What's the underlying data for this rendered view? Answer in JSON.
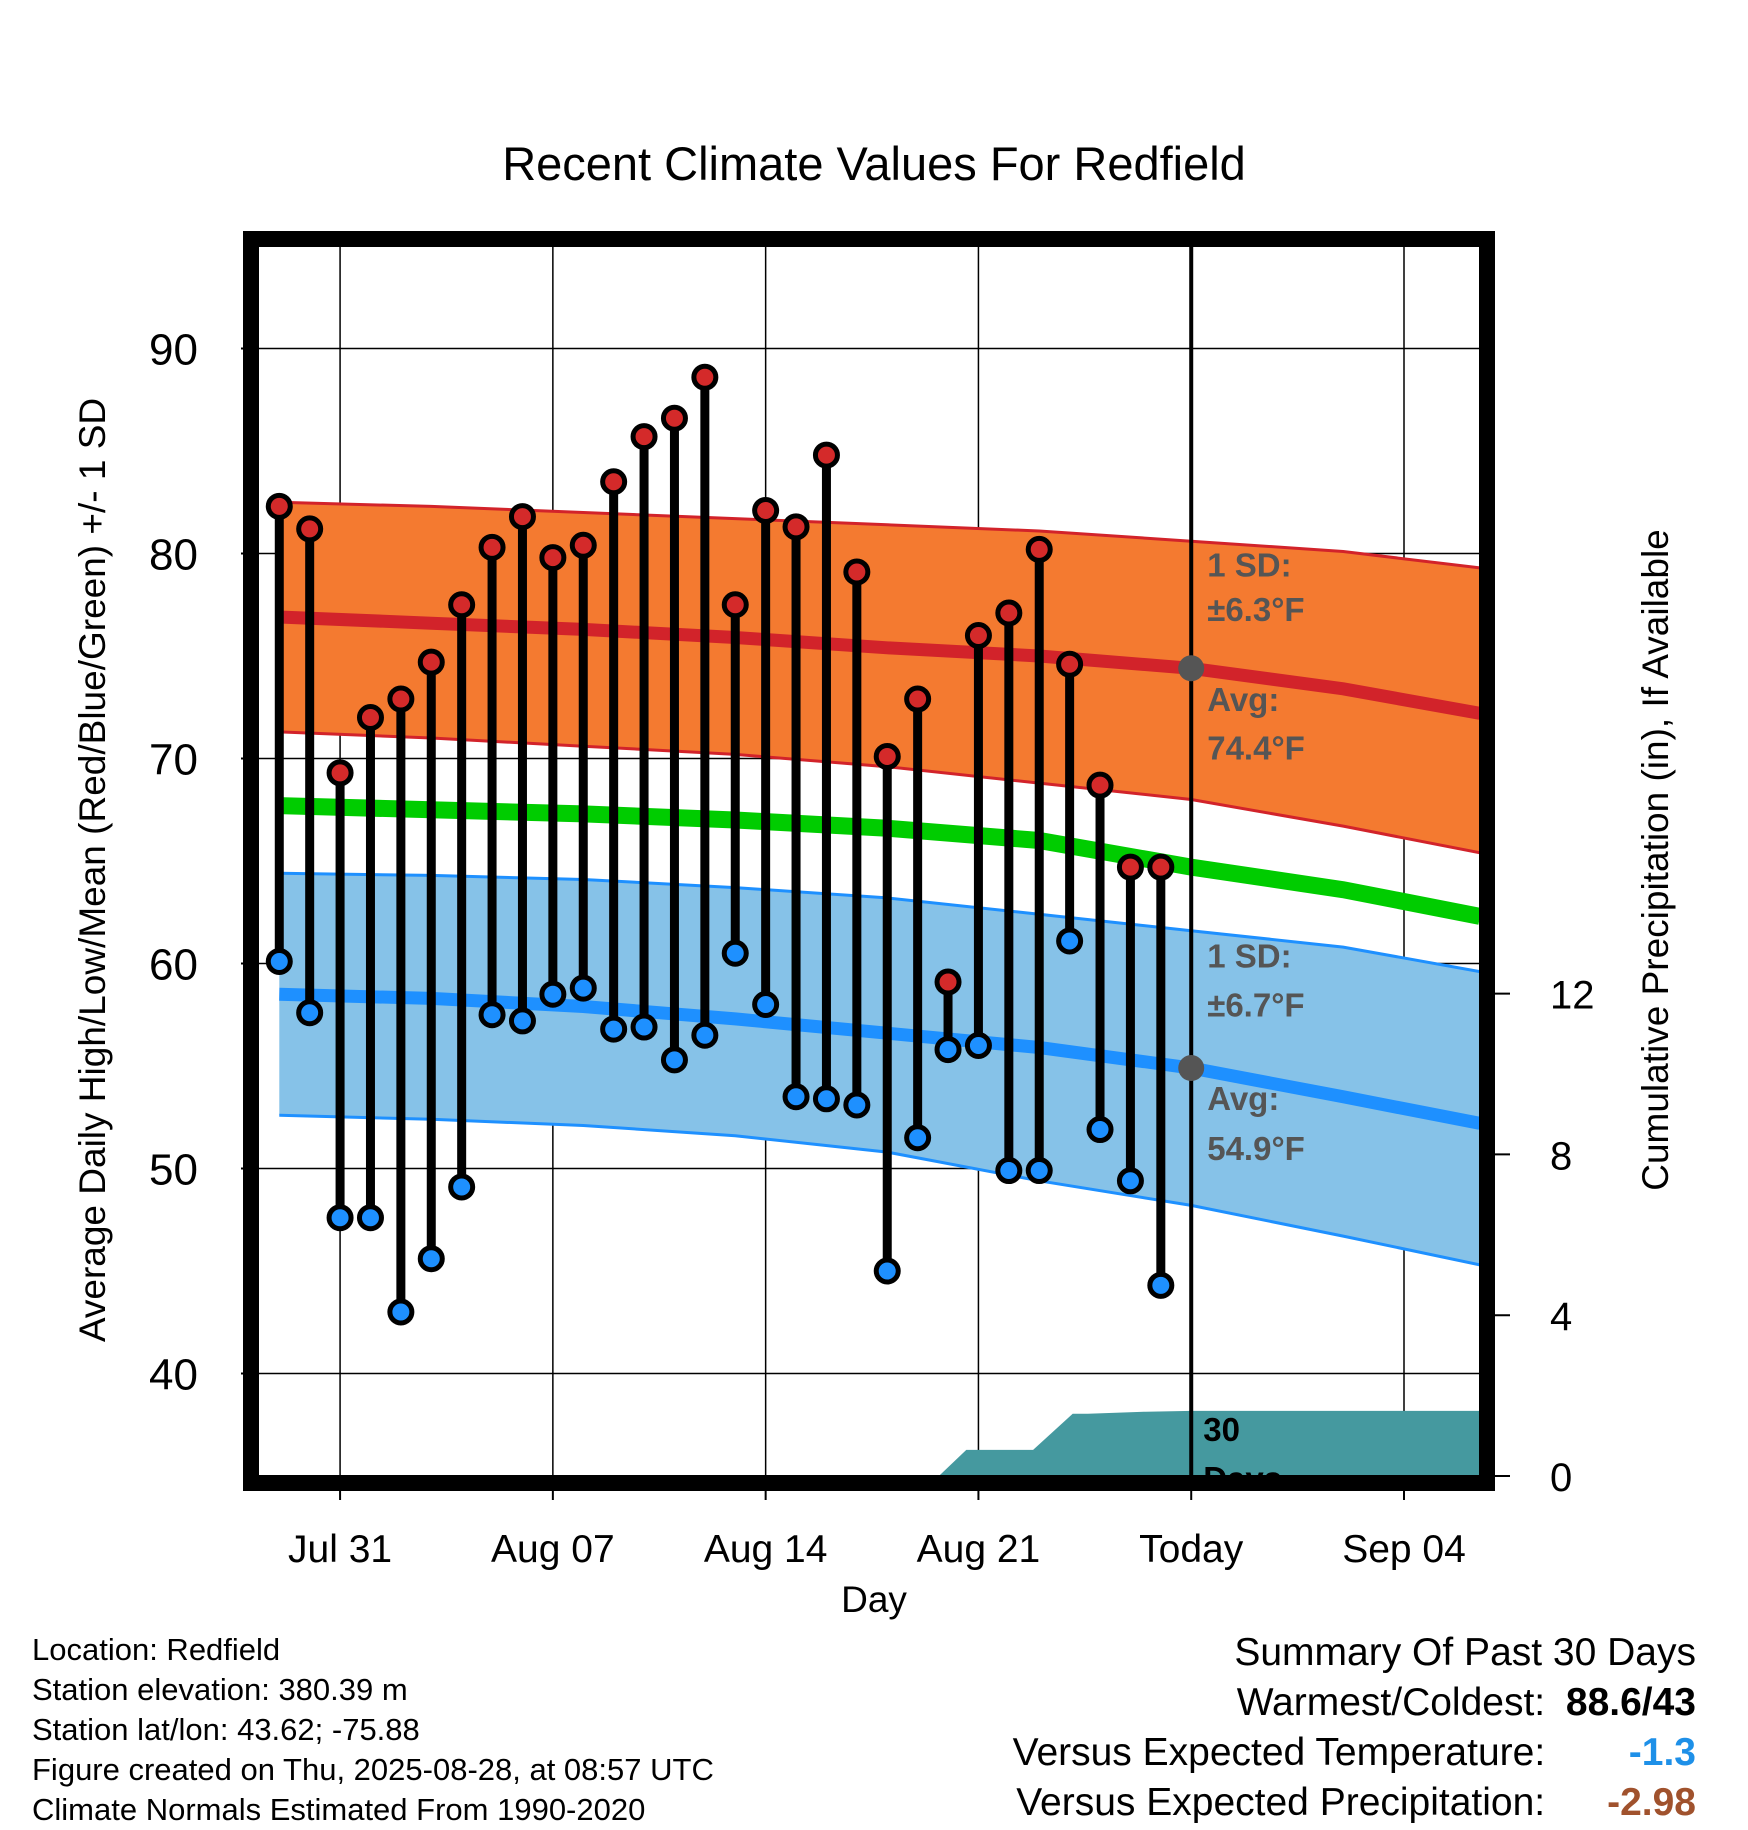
{
  "chart_data": {
    "type": "line",
    "title": "Recent Climate Values For Redfield",
    "xlabel": "Day",
    "ylabel": "Average Daily High/Low/Mean (Red/Blue/Green) +/- 1 SD",
    "y2label": "Cumulative Precipitation (in), If Available",
    "ylim": [
      35,
      95
    ],
    "y2lim": [
      0,
      30.6
    ],
    "yticks": [
      40,
      50,
      60,
      70,
      80,
      90
    ],
    "y2ticks": [
      0,
      4,
      8,
      12
    ],
    "xticks": [
      {
        "day": 2,
        "label": "Jul 31"
      },
      {
        "day": 9,
        "label": "Aug 07"
      },
      {
        "day": 16,
        "label": "Aug 14"
      },
      {
        "day": 23,
        "label": "Aug 21"
      },
      {
        "day": 30,
        "label": "Today"
      },
      {
        "day": 37,
        "label": "Sep 04"
      }
    ],
    "x_day_zero": "Jul 29",
    "xlim": [
      -0.7,
      39.5
    ],
    "today_day": 30,
    "window_label": [
      "30",
      "Days"
    ],
    "normals": {
      "days": [
        0,
        5,
        10,
        15,
        20,
        25,
        30,
        35,
        39.5
      ],
      "high_avg": [
        76.9,
        76.6,
        76.3,
        75.9,
        75.4,
        75.0,
        74.4,
        73.4,
        72.2
      ],
      "high_upper": [
        82.5,
        82.3,
        82.0,
        81.7,
        81.4,
        81.1,
        80.6,
        80.1,
        79.3
      ],
      "high_lower": [
        71.3,
        71.0,
        70.6,
        70.2,
        69.6,
        68.8,
        68.0,
        66.7,
        65.4
      ],
      "mean": [
        67.7,
        67.5,
        67.3,
        67.0,
        66.6,
        66.0,
        64.7,
        63.6,
        62.3
      ],
      "low_avg": [
        58.5,
        58.3,
        57.9,
        57.3,
        56.6,
        55.9,
        54.9,
        53.5,
        52.2
      ],
      "low_upper": [
        64.4,
        64.3,
        64.1,
        63.7,
        63.2,
        62.4,
        61.6,
        60.8,
        59.6
      ],
      "low_lower": [
        52.6,
        52.4,
        52.1,
        51.6,
        50.8,
        49.4,
        48.2,
        46.7,
        45.3
      ]
    },
    "observed": {
      "days": [
        0,
        1,
        2,
        3,
        4,
        5,
        6,
        7,
        8,
        9,
        10,
        11,
        12,
        13,
        14,
        15,
        16,
        17,
        18,
        19,
        20,
        21,
        22,
        23,
        24,
        25,
        26,
        27,
        28,
        29
      ],
      "high": [
        82.3,
        81.2,
        69.3,
        72.0,
        72.9,
        74.7,
        77.5,
        80.3,
        81.8,
        79.8,
        80.4,
        83.5,
        85.7,
        86.6,
        88.6,
        77.5,
        82.1,
        81.3,
        84.8,
        79.1,
        70.1,
        72.9,
        59.1,
        76.0,
        77.1,
        80.2,
        74.6,
        68.7,
        64.7,
        64.7
      ],
      "low": [
        60.1,
        57.6,
        47.6,
        47.6,
        43.0,
        45.6,
        49.1,
        57.5,
        57.2,
        58.5,
        58.8,
        56.8,
        56.9,
        55.3,
        56.5,
        60.5,
        58.0,
        53.5,
        53.4,
        53.1,
        45.0,
        51.5,
        55.8,
        56.0,
        49.9,
        49.9,
        61.1,
        51.9,
        49.4,
        44.3
      ]
    },
    "precip": {
      "days": [
        21.7,
        22.6,
        24.8,
        26.1,
        26.6,
        28.5,
        30,
        39.5
      ],
      "values": [
        0,
        0.65,
        0.65,
        1.55,
        1.55,
        1.6,
        1.62,
        1.62
      ]
    },
    "annotations": {
      "high_sd_label": "1 SD:",
      "high_sd_value": "±6.3°F",
      "high_avg_label": "Avg:",
      "high_avg_value": "74.4°F",
      "low_sd_label": "1 SD:",
      "low_sd_value": "±6.7°F",
      "low_avg_label": "Avg:",
      "low_avg_value": "54.9°F"
    },
    "colors": {
      "high_band": "#f47a30",
      "high_line": "#d2232a",
      "low_band": "#86c2e8",
      "low_line": "#1e90ff",
      "mean_line": "#00cc00",
      "precip": "#45999f",
      "high_dot": "#d42a2a",
      "low_dot": "#1e90ff",
      "annotation": "#555555"
    },
    "grid": true
  },
  "footer": {
    "location": "Location: Redfield",
    "elevation": "Station elevation: 380.39 m",
    "latlon": "Station lat/lon: 43.62; -75.88",
    "created": "Figure created on Thu, 2025-08-28, at 08:57 UTC",
    "normals": "Climate Normals Estimated From 1990-2020"
  },
  "summary": {
    "title": "Summary Of Past 30 Days",
    "warmest_label": "Warmest/Coldest:",
    "warmest_value": "88.6/43",
    "temp_label": "Versus Expected Temperature:",
    "temp_value": "-1.3",
    "precip_label": "Versus Expected Precipitation:",
    "precip_value": "-2.98"
  }
}
